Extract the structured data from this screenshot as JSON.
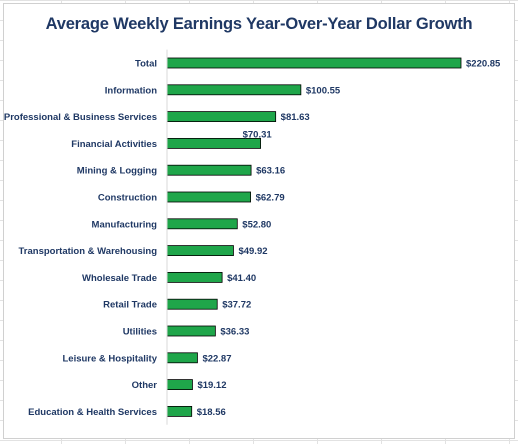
{
  "chart_data": {
    "type": "bar",
    "orientation": "horizontal",
    "title": "Average Weekly Earnings Year-Over-Year Dollar Growth",
    "categories": [
      "Total",
      "Information",
      "Professional & Business Services",
      "Financial Activities",
      "Mining & Logging",
      "Construction",
      "Manufacturing",
      "Transportation & Warehousing",
      "Wholesale Trade",
      "Retail Trade",
      "Utilities",
      "Leisure & Hospitality",
      "Other",
      "Education & Health Services"
    ],
    "values": [
      220.85,
      100.55,
      81.63,
      70.31,
      63.16,
      62.79,
      52.8,
      49.92,
      41.4,
      37.72,
      36.33,
      22.87,
      19.12,
      18.56
    ],
    "data_labels": [
      "$220.85",
      "$100.55",
      "$81.63",
      "$70.31",
      "$63.16",
      "$62.79",
      "$52.80",
      "$49.92",
      "$41.40",
      "$37.72",
      "$36.33",
      "$22.87",
      "$19.12",
      "$18.56"
    ],
    "xlim": [
      0,
      220.85
    ],
    "grid": false,
    "legend": "none",
    "bar_color": "#1fa64a",
    "bar_edge_color": "#000000",
    "label_color": "#1f3864"
  }
}
